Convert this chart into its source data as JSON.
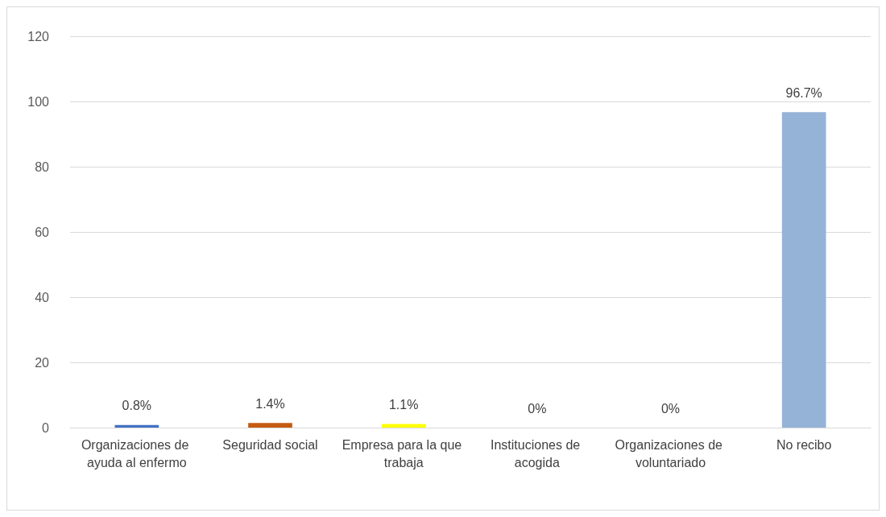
{
  "chart_data": {
    "type": "bar",
    "categories": [
      "Organizaciones de ayuda al enfermo",
      "Seguridad social",
      "Empresa para la que trabaja",
      "Instituciones de acogida",
      "Organizaciones de voluntariado",
      "No recibo"
    ],
    "values": [
      0.8,
      1.4,
      1.1,
      0,
      0,
      96.7
    ],
    "colors": [
      "#4472c4",
      "#c55a11",
      "#ffff00",
      "#a5a5a5",
      "#5b9bd5",
      "#95b3d7"
    ],
    "value_labels": [
      "0.8%",
      "1.4%",
      "1.1%",
      "0%",
      "0%",
      "96.7%"
    ],
    "ylim": [
      0,
      120
    ],
    "yticks": [
      0,
      20,
      40,
      60,
      80,
      100,
      120
    ],
    "grid": "y"
  }
}
